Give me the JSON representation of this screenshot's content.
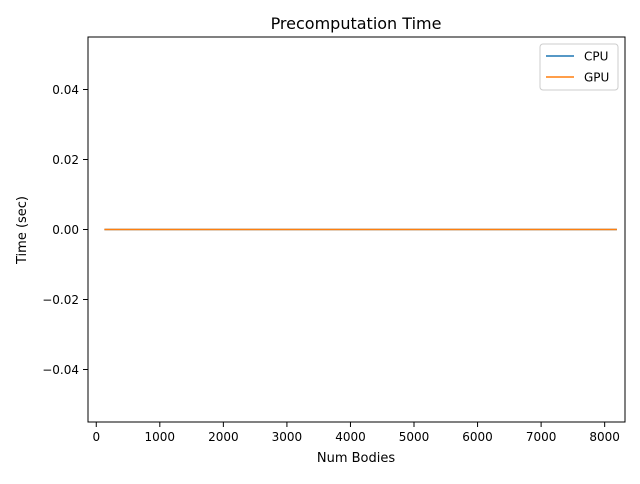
{
  "chart_data": {
    "type": "line",
    "title": "Precomputation Time",
    "xlabel": "Num Bodies",
    "ylabel": "Time (sec)",
    "xlim": [
      -130,
      8320
    ],
    "ylim": [
      -0.055,
      0.055
    ],
    "x_ticks": [
      0,
      1000,
      2000,
      3000,
      4000,
      5000,
      6000,
      7000,
      8000
    ],
    "x_tick_labels": [
      "0",
      "1000",
      "2000",
      "3000",
      "4000",
      "5000",
      "6000",
      "7000",
      "8000"
    ],
    "y_ticks": [
      -0.04,
      -0.02,
      0.0,
      0.02,
      0.04
    ],
    "y_tick_labels": [
      "−0.04",
      "−0.02",
      "0.00",
      "0.02",
      "0.04"
    ],
    "grid": false,
    "legend_position": "top-right",
    "series": [
      {
        "name": "CPU",
        "color": "#1f77b4",
        "x": [
          128,
          8192
        ],
        "y": [
          0,
          0
        ]
      },
      {
        "name": "GPU",
        "color": "#ff7f0e",
        "x": [
          128,
          8192
        ],
        "y": [
          0,
          0
        ]
      }
    ]
  }
}
